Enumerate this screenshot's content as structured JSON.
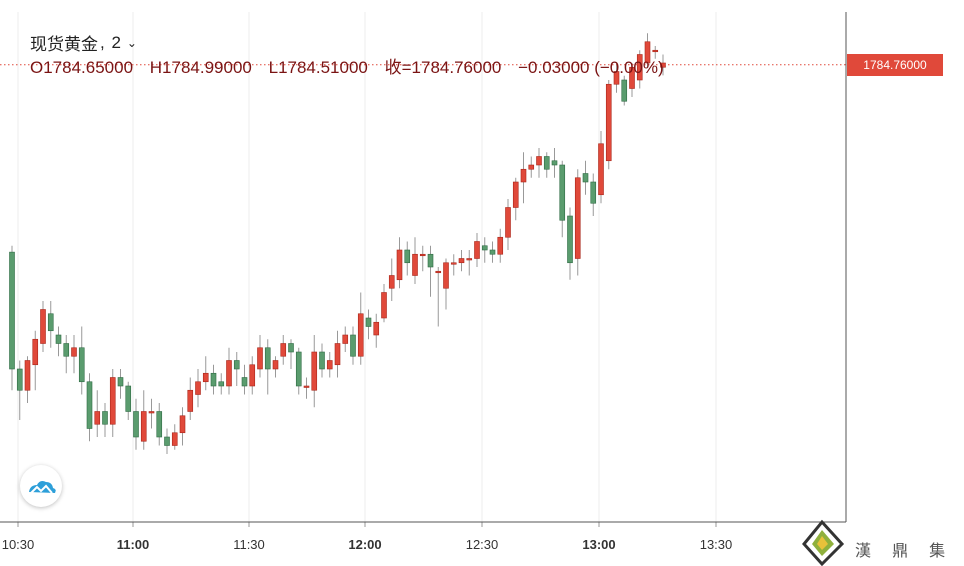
{
  "header": {
    "symbol": "现货黄金",
    "interval": "2",
    "open_label": "O1784.65000",
    "high_label": "H1784.99000",
    "low_label": "L1784.51000",
    "close_label": "收=1784.76000",
    "change_label": "−0.03000 (−0.00%)"
  },
  "price_tag": "1784.76000",
  "watermark": "漢 鼎 集 團",
  "colors": {
    "up": "#e0493a",
    "down": "#5a9c6e",
    "grid": "#ececec",
    "tag": "#e0493a"
  },
  "chart_data": {
    "type": "candlestick",
    "x_axis": {
      "ticks": [
        "10:30",
        "11:00",
        "11:30",
        "12:00",
        "12:30",
        "13:00",
        "13:30"
      ],
      "grid": true
    },
    "y_axis": {
      "range": [
        1774.0,
        1786.0
      ],
      "labels": false
    },
    "last_price": 1784.76,
    "candles": [
      [
        1780.35,
        1777.6,
        1780.5,
        1777.1
      ],
      [
        1777.6,
        1777.1,
        1777.8,
        1776.4
      ],
      [
        1777.1,
        1777.8,
        1777.9,
        1776.8
      ],
      [
        1777.7,
        1778.3,
        1778.5,
        1777.1
      ],
      [
        1778.2,
        1779.0,
        1779.2,
        1778.0
      ],
      [
        1778.9,
        1778.5,
        1779.2,
        1778.1
      ],
      [
        1778.4,
        1778.2,
        1778.6,
        1777.9
      ],
      [
        1778.2,
        1777.9,
        1778.4,
        1777.5
      ],
      [
        1777.9,
        1778.1,
        1778.4,
        1777.5
      ],
      [
        1778.1,
        1777.3,
        1778.6,
        1777.0
      ],
      [
        1777.3,
        1776.2,
        1777.5,
        1775.9
      ],
      [
        1776.3,
        1776.6,
        1777.1,
        1776.0
      ],
      [
        1776.6,
        1776.3,
        1776.8,
        1776.0
      ],
      [
        1776.3,
        1777.4,
        1777.6,
        1776.0
      ],
      [
        1777.4,
        1777.2,
        1777.6,
        1776.9
      ],
      [
        1777.2,
        1776.6,
        1777.3,
        1776.4
      ],
      [
        1776.6,
        1776.0,
        1776.9,
        1775.7
      ],
      [
        1775.9,
        1776.6,
        1777.1,
        1775.7
      ],
      [
        1776.6,
        1776.6,
        1776.9,
        1776.2
      ],
      [
        1776.6,
        1776.0,
        1776.8,
        1775.8
      ],
      [
        1776.0,
        1775.8,
        1776.2,
        1775.6
      ],
      [
        1775.8,
        1776.1,
        1776.3,
        1775.7
      ],
      [
        1776.1,
        1776.5,
        1776.7,
        1775.8
      ],
      [
        1776.6,
        1777.1,
        1777.4,
        1776.4
      ],
      [
        1777.0,
        1777.3,
        1777.6,
        1776.7
      ],
      [
        1777.3,
        1777.5,
        1777.9,
        1777.1
      ],
      [
        1777.5,
        1777.2,
        1777.7,
        1777.0
      ],
      [
        1777.3,
        1777.2,
        1777.5,
        1777.0
      ],
      [
        1777.2,
        1777.8,
        1778.1,
        1777.0
      ],
      [
        1777.8,
        1777.6,
        1778.0,
        1777.2
      ],
      [
        1777.4,
        1777.2,
        1777.7,
        1777.0
      ],
      [
        1777.2,
        1777.7,
        1777.9,
        1777.0
      ],
      [
        1777.6,
        1778.1,
        1778.4,
        1777.4
      ],
      [
        1778.1,
        1777.6,
        1778.3,
        1777.0
      ],
      [
        1777.6,
        1777.8,
        1777.9,
        1777.4
      ],
      [
        1777.9,
        1778.2,
        1778.4,
        1777.7
      ],
      [
        1778.2,
        1778.0,
        1778.3,
        1777.6
      ],
      [
        1778.0,
        1777.2,
        1778.1,
        1777.0
      ],
      [
        1777.2,
        1777.2,
        1777.4,
        1776.9
      ],
      [
        1777.1,
        1778.0,
        1778.4,
        1776.7
      ],
      [
        1778.0,
        1777.6,
        1778.2,
        1777.4
      ],
      [
        1777.6,
        1777.8,
        1778.0,
        1777.4
      ],
      [
        1777.7,
        1778.2,
        1778.5,
        1777.4
      ],
      [
        1778.2,
        1778.4,
        1778.6,
        1778.0
      ],
      [
        1778.4,
        1777.9,
        1778.6,
        1777.7
      ],
      [
        1777.9,
        1778.9,
        1779.4,
        1777.7
      ],
      [
        1778.8,
        1778.6,
        1779.0,
        1778.3
      ],
      [
        1778.4,
        1778.7,
        1778.9,
        1778.1
      ],
      [
        1778.8,
        1779.4,
        1779.6,
        1778.7
      ],
      [
        1779.5,
        1779.8,
        1780.2,
        1779.2
      ],
      [
        1779.7,
        1780.4,
        1780.7,
        1779.5
      ],
      [
        1780.4,
        1780.1,
        1780.6,
        1779.8
      ],
      [
        1779.8,
        1780.3,
        1780.7,
        1779.6
      ],
      [
        1780.3,
        1780.3,
        1780.5,
        1779.9
      ],
      [
        1780.3,
        1780.0,
        1780.5,
        1779.3
      ],
      [
        1779.9,
        1779.9,
        1780.0,
        1778.6
      ],
      [
        1779.5,
        1780.1,
        1780.2,
        1779.0
      ],
      [
        1780.1,
        1780.1,
        1780.3,
        1779.8
      ],
      [
        1780.1,
        1780.2,
        1780.4,
        1779.9
      ],
      [
        1780.2,
        1780.2,
        1780.4,
        1779.8
      ],
      [
        1780.2,
        1780.6,
        1780.8,
        1780.0
      ],
      [
        1780.5,
        1780.4,
        1780.7,
        1780.1
      ],
      [
        1780.4,
        1780.3,
        1780.6,
        1780.1
      ],
      [
        1780.3,
        1780.7,
        1780.9,
        1780.1
      ],
      [
        1780.7,
        1781.4,
        1781.6,
        1780.4
      ],
      [
        1781.4,
        1782.0,
        1782.1,
        1781.1
      ],
      [
        1782.0,
        1782.3,
        1782.7,
        1781.5
      ],
      [
        1782.3,
        1782.4,
        1782.6,
        1782.1
      ],
      [
        1782.4,
        1782.6,
        1782.8,
        1782.1
      ],
      [
        1782.6,
        1782.3,
        1782.7,
        1782.1
      ],
      [
        1782.5,
        1782.4,
        1782.8,
        1782.1
      ],
      [
        1782.4,
        1781.1,
        1782.5,
        1780.7
      ],
      [
        1781.2,
        1780.1,
        1781.4,
        1779.7
      ],
      [
        1780.2,
        1782.1,
        1782.3,
        1779.8
      ],
      [
        1782.2,
        1782.0,
        1782.5,
        1781.7
      ],
      [
        1782.0,
        1781.5,
        1782.2,
        1781.2
      ],
      [
        1781.7,
        1782.9,
        1783.2,
        1781.5
      ],
      [
        1782.5,
        1784.3,
        1784.4,
        1782.3
      ],
      [
        1784.3,
        1784.6,
        1784.8,
        1784.1
      ],
      [
        1784.4,
        1783.9,
        1784.5,
        1783.8
      ],
      [
        1784.2,
        1784.7,
        1784.8,
        1784.0
      ],
      [
        1784.4,
        1785.0,
        1785.1,
        1784.2
      ],
      [
        1784.8,
        1785.3,
        1785.5,
        1784.7
      ],
      [
        1785.1,
        1785.1,
        1785.2,
        1784.9
      ],
      [
        1784.7,
        1784.8,
        1785.0,
        1784.51
      ]
    ]
  }
}
